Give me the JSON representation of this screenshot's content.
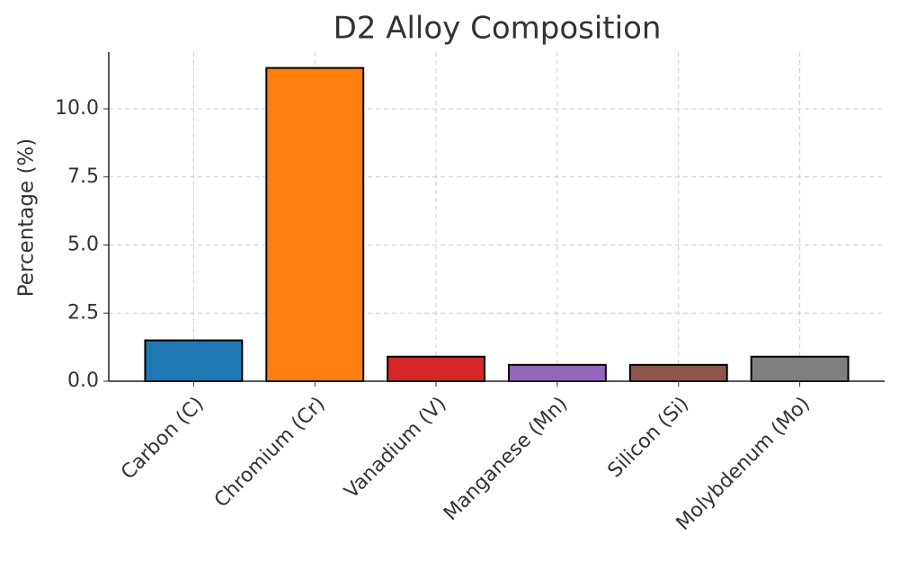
{
  "chart_data": {
    "type": "bar",
    "title": "D2 Alloy Composition",
    "y_label": "Percentage (%)",
    "categories": [
      "Carbon (C)",
      "Chromium (Cr)",
      "Vanadium (V)",
      "Manganese (Mn)",
      "Silicon (Si)",
      "Molybdenum (Mo)"
    ],
    "values": [
      1.5,
      11.5,
      0.9,
      0.6,
      0.6,
      0.9
    ],
    "colors": [
      "#1f77b4",
      "#ff7f0e",
      "#d62728",
      "#9467bd",
      "#8c564b",
      "#7f7f7f"
    ],
    "ylim": [
      0,
      12.08
    ],
    "yticks": [
      {
        "value": 0,
        "label": "0.0"
      },
      {
        "value": 2.5,
        "label": "2.5"
      },
      {
        "value": 5,
        "label": "5.0"
      },
      {
        "value": 7.5,
        "label": "7.5"
      },
      {
        "value": 10,
        "label": "10.0"
      }
    ],
    "grid": true
  }
}
